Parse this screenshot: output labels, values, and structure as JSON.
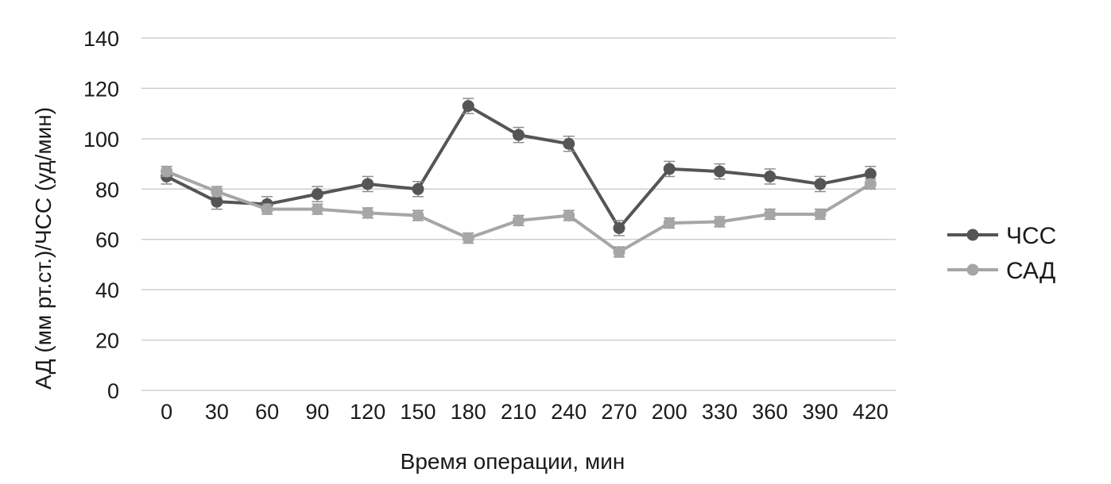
{
  "chart_data": {
    "type": "line",
    "xlabel": "Время операции, мин",
    "ylabel": "АД (мм рт.ст.)/ЧСС (уд/мин)",
    "categories": [
      "0",
      "30",
      "60",
      "90",
      "120",
      "150",
      "180",
      "210",
      "240",
      "270",
      "200",
      "330",
      "360",
      "390",
      "420"
    ],
    "ylim": [
      0,
      140
    ],
    "yticks": [
      0,
      20,
      40,
      60,
      80,
      100,
      120,
      140
    ],
    "grid": true,
    "legend_position": "right",
    "series": [
      {
        "name": "ЧСС",
        "color": "#555555",
        "values": [
          85,
          75,
          74,
          78,
          82,
          80,
          113,
          101.5,
          98,
          64.5,
          88,
          87,
          85,
          82,
          86
        ],
        "error": [
          3,
          3,
          3,
          3,
          3,
          3,
          3,
          3,
          3,
          3,
          3,
          3,
          3,
          3,
          3
        ]
      },
      {
        "name": "САД",
        "color": "#a6a6a6",
        "values": [
          87,
          79,
          72,
          72,
          70.5,
          69.5,
          60.5,
          67.5,
          69.5,
          55,
          66.5,
          67,
          70,
          70,
          82
        ],
        "error": [
          2,
          2,
          2,
          2,
          2,
          2,
          2,
          2,
          2,
          2,
          2,
          2,
          2,
          2,
          2
        ]
      }
    ]
  }
}
